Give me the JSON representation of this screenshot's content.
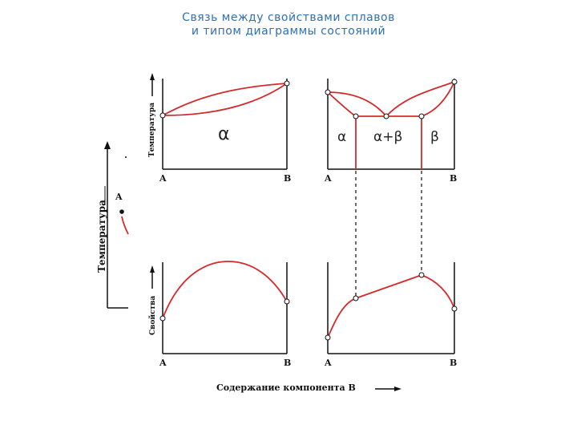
{
  "title": {
    "line1": "Связь между свойствами сплавов",
    "line2": "и типом диаграммы состояний"
  },
  "axes": {
    "temperature": "Температура",
    "properties": "Свойства",
    "x_label": "Содержание компонента B",
    "component_a": "A",
    "component_b": "B"
  },
  "phases": {
    "alpha": "α",
    "alpha_beta": "α+β",
    "beta": "β"
  },
  "colors": {
    "curve": "#d42a2a",
    "axis": "#111111",
    "title": "#2f6fb4"
  }
}
